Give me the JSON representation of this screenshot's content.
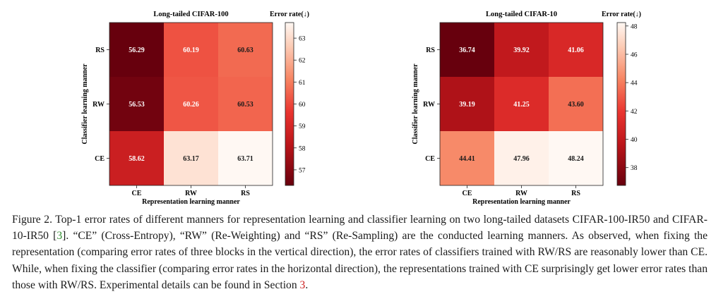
{
  "chart_data": [
    {
      "type": "heatmap",
      "title": "Long-tailed CIFAR-100",
      "xlabel": "Representation learning manner",
      "ylabel": "Classifier learning manner",
      "x_categories": [
        "CE",
        "RW",
        "RS"
      ],
      "y_categories": [
        "RS",
        "RW",
        "CE"
      ],
      "values": [
        [
          56.29,
          60.19,
          60.63
        ],
        [
          56.53,
          60.26,
          60.53
        ],
        [
          58.62,
          63.17,
          63.71
        ]
      ],
      "value_labels": [
        [
          "56.29",
          "60.19",
          "60.63"
        ],
        [
          "56.53",
          "60.26",
          "60.53"
        ],
        [
          "58.62",
          "63.17",
          "63.71"
        ]
      ],
      "colorbar": {
        "label": "Error rate(↓)",
        "ticks": [
          57,
          58,
          59,
          60,
          61,
          62,
          63
        ],
        "range": [
          56.29,
          63.71
        ]
      },
      "colormap": "Reds_r"
    },
    {
      "type": "heatmap",
      "title": "Long-tailed CIFAR-10",
      "xlabel": "Representation learning manner",
      "ylabel": "Classifier learning manner",
      "x_categories": [
        "CE",
        "RW",
        "RS"
      ],
      "y_categories": [
        "RS",
        "RW",
        "CE"
      ],
      "values": [
        [
          36.74,
          39.92,
          41.06
        ],
        [
          39.19,
          41.25,
          43.6
        ],
        [
          44.41,
          47.96,
          48.24
        ]
      ],
      "value_labels": [
        [
          "36.74",
          "39.92",
          "41.06"
        ],
        [
          "39.19",
          "41.25",
          "43.60"
        ],
        [
          "44.41",
          "47.96",
          "48.24"
        ]
      ],
      "colorbar": {
        "label": "Error rate(↓)",
        "ticks": [
          38,
          40,
          42,
          44,
          46,
          48
        ],
        "range": [
          36.74,
          48.24
        ]
      },
      "colormap": "Reds_r"
    }
  ],
  "caption": {
    "part1": "Figure 2. Top-1 error rates of different manners for representation learning and classifier learning on two long-tailed datasets CIFAR-100-IR50 and CIFAR-10-IR50 [",
    "cite": "3",
    "part2": "]. “CE” (Cross-Entropy), “RW” (Re-Weighting) and “RS” (Re-Sampling) are the conducted learning manners. As observed, when fixing the representation (comparing error rates of three blocks in the vertical direction), the error rates of classifiers trained with RW/RS are reasonably lower than CE. While, when fixing the classifier (comparing error rates in the horizontal direction), the representations trained with CE surprisingly get lower error rates than those with RW/RS. Experimental details can be found in Section ",
    "section_ref": "3",
    "part3": "."
  }
}
